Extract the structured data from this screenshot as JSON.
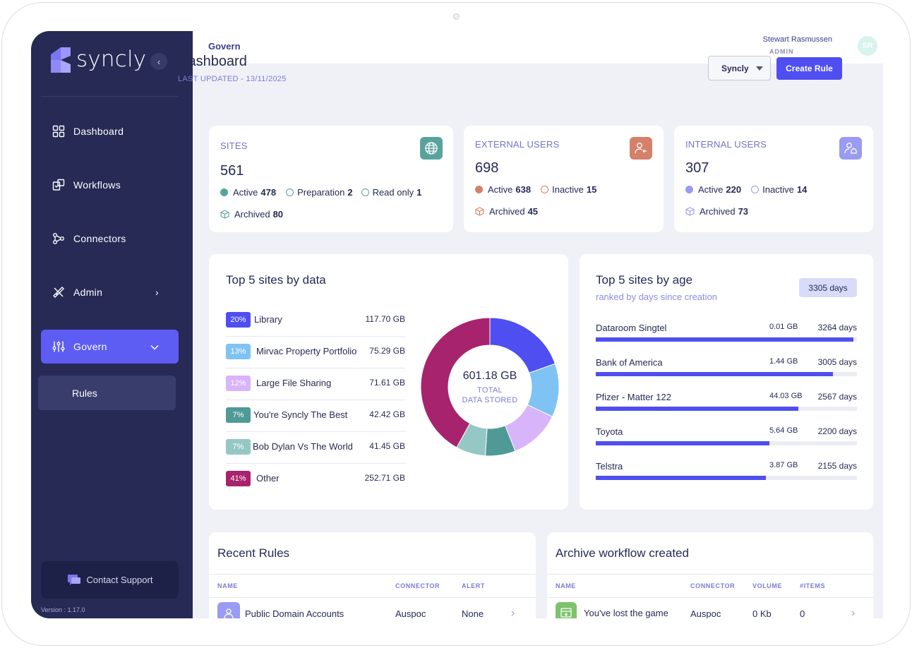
{
  "brand": {
    "name": "syncly",
    "version": "Version : 1.17.0"
  },
  "sidebar": {
    "items": [
      {
        "label": "Dashboard"
      },
      {
        "label": "Workflows"
      },
      {
        "label": "Connectors"
      },
      {
        "label": "Admin"
      },
      {
        "label": "Govern"
      }
    ],
    "sub_items": [
      {
        "label": "Rules"
      }
    ],
    "support_label": "Contact Support"
  },
  "topbar": {
    "breadcrumb": "Govern",
    "user_name": "Stewart Rasmussen",
    "user_role": "ADMIN",
    "avatar_initials": "SR"
  },
  "header": {
    "title": "Dashboard",
    "updated": "LAST UPDATED - 13/11/2025",
    "tenant": "Syncly",
    "create_label": "Create Rule"
  },
  "stats": {
    "sites": {
      "label": "SITES",
      "value": "561",
      "active_label": "Active",
      "active": "478",
      "prep_label": "Preparation",
      "prep": "2",
      "readonly_label": "Read only",
      "readonly": "1",
      "archived_label": "Archived",
      "archived": "80"
    },
    "external": {
      "label": "EXTERNAL USERS",
      "value": "698",
      "active_label": "Active",
      "active": "638",
      "inactive_label": "Inactive",
      "inactive": "15",
      "archived_label": "Archived",
      "archived": "45"
    },
    "internal": {
      "label": "INTERNAL USERS",
      "value": "307",
      "active_label": "Active",
      "active": "220",
      "inactive_label": "Inactive",
      "inactive": "14",
      "archived_label": "Archived",
      "archived": "73"
    }
  },
  "top_data": {
    "title": "Top 5 sites by data",
    "total": "601.18 GB",
    "total_label_1": "TOTAL",
    "total_label_2": "DATA STORED",
    "rows": [
      {
        "pct": "20%",
        "name": "Library",
        "size": "117.70 GB"
      },
      {
        "pct": "13%",
        "name": "Mirvac Property Portfolio",
        "size": "75.29 GB"
      },
      {
        "pct": "12%",
        "name": "Large File Sharing",
        "size": "71.61 GB"
      },
      {
        "pct": "7%",
        "name": "You're Syncly The Best",
        "size": "42.42 GB"
      },
      {
        "pct": "7%",
        "name": "Bob Dylan Vs The World",
        "size": "41.45 GB"
      },
      {
        "pct": "41%",
        "name": "Other",
        "size": "252.71 GB"
      }
    ]
  },
  "chart_data": {
    "type": "pie",
    "title": "Top 5 sites by data",
    "categories": [
      "Library",
      "Mirvac Property Portfolio",
      "Large File Sharing",
      "You're Syncly The Best",
      "Bob Dylan Vs The World",
      "Other"
    ],
    "values": [
      117.7,
      75.29,
      71.61,
      42.42,
      41.45,
      252.71
    ],
    "colors": [
      "#4f4ef1",
      "#7ec3f3",
      "#d8b4fb",
      "#4f9a97",
      "#95c8c5",
      "#a8236d"
    ],
    "unit": "GB"
  },
  "top_age": {
    "title": "Top 5 sites by age",
    "subtitle": "ranked by days since creation",
    "badge": "3305 days",
    "max_days": 3305,
    "rows": [
      {
        "name": "Dataroom Singtel",
        "size": "0.01 GB",
        "days_label": "3264 days",
        "days": 3264
      },
      {
        "name": "Bank of America",
        "size": "1.44 GB",
        "days_label": "3005 days",
        "days": 3005
      },
      {
        "name": "Pfizer - Matter 122",
        "size": "44.03 GB",
        "days_label": "2567 days",
        "days": 2567
      },
      {
        "name": "Toyota",
        "size": "5.64 GB",
        "days_label": "2200 days",
        "days": 2200
      },
      {
        "name": "Telstra",
        "size": "3.87 GB",
        "days_label": "2155 days",
        "days": 2155
      }
    ]
  },
  "recent_rules": {
    "title": "Recent Rules",
    "headers": {
      "name": "NAME",
      "connector": "CONNECTOR",
      "alert": "ALERT"
    },
    "rows": [
      {
        "name": "Public Domain Accounts",
        "connector": "Auspoc",
        "alert": "None"
      }
    ]
  },
  "archive": {
    "title": "Archive workflow created",
    "headers": {
      "name": "NAME",
      "connector": "CONNECTOR",
      "volume": "VOLUME",
      "items": "#ITEMS"
    },
    "rows": [
      {
        "name": "You've lost the game",
        "connector": "Auspoc",
        "volume": "0 Kb",
        "items": "0"
      }
    ]
  }
}
